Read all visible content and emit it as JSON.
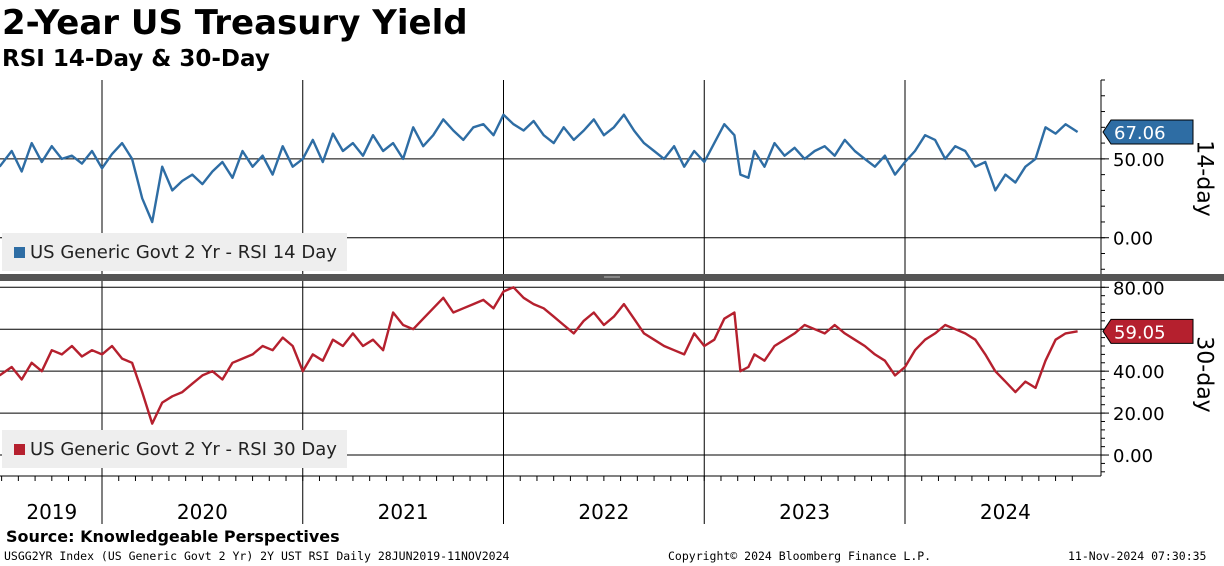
{
  "title": "2-Year US Treasury Yield",
  "subtitle": "RSI 14-Day & 30-Day",
  "source": "Source: Knowledgeable Perspectives",
  "footer": {
    "left": "USGG2YR Index (US Generic Govt 2 Yr) 2Y UST RSI  Daily 28JUN2019-11NOV2024",
    "center": "Copyright© 2024 Bloomberg Finance L.P.",
    "right": "11-Nov-2024 07:30:35"
  },
  "chart_data": [
    {
      "type": "line",
      "panel": "14-day",
      "panel_label": "14-day",
      "legend": "US Generic Govt 2 Yr - RSI 14 Day",
      "color": "#2e6da4",
      "last_value_label": "67.06",
      "yticks": [
        0,
        50
      ],
      "ytick_labels": [
        "0.00",
        "50.00"
      ],
      "ylim": [
        -23,
        100
      ],
      "x": [
        2019.49,
        2019.55,
        2019.6,
        2019.65,
        2019.7,
        2019.75,
        2019.8,
        2019.85,
        2019.9,
        2019.95,
        2020.0,
        2020.05,
        2020.1,
        2020.15,
        2020.2,
        2020.25,
        2020.3,
        2020.35,
        2020.4,
        2020.45,
        2020.5,
        2020.55,
        2020.6,
        2020.65,
        2020.7,
        2020.75,
        2020.8,
        2020.85,
        2020.9,
        2020.95,
        2021.0,
        2021.05,
        2021.1,
        2021.15,
        2021.2,
        2021.25,
        2021.3,
        2021.35,
        2021.4,
        2021.45,
        2021.5,
        2021.55,
        2021.6,
        2021.65,
        2021.7,
        2021.75,
        2021.8,
        2021.85,
        2021.9,
        2021.95,
        2022.0,
        2022.05,
        2022.1,
        2022.15,
        2022.2,
        2022.25,
        2022.3,
        2022.35,
        2022.4,
        2022.45,
        2022.5,
        2022.55,
        2022.6,
        2022.65,
        2022.7,
        2022.75,
        2022.8,
        2022.85,
        2022.9,
        2022.95,
        2023.0,
        2023.05,
        2023.1,
        2023.15,
        2023.18,
        2023.22,
        2023.25,
        2023.3,
        2023.35,
        2023.4,
        2023.45,
        2023.5,
        2023.55,
        2023.6,
        2023.65,
        2023.7,
        2023.75,
        2023.8,
        2023.85,
        2023.9,
        2023.95,
        2024.0,
        2024.05,
        2024.1,
        2024.15,
        2024.2,
        2024.25,
        2024.3,
        2024.35,
        2024.4,
        2024.45,
        2024.5,
        2024.55,
        2024.6,
        2024.65,
        2024.7,
        2024.75,
        2024.8,
        2024.86
      ],
      "values": [
        45,
        55,
        42,
        60,
        48,
        58,
        50,
        52,
        47,
        55,
        44,
        53,
        60,
        50,
        25,
        10,
        45,
        30,
        36,
        40,
        34,
        42,
        48,
        38,
        55,
        45,
        52,
        40,
        58,
        45,
        50,
        62,
        48,
        66,
        55,
        60,
        52,
        65,
        55,
        60,
        50,
        70,
        58,
        65,
        75,
        68,
        62,
        70,
        72,
        65,
        78,
        72,
        68,
        74,
        65,
        60,
        70,
        62,
        68,
        75,
        65,
        70,
        78,
        68,
        60,
        55,
        50,
        58,
        45,
        55,
        48,
        60,
        72,
        65,
        40,
        38,
        55,
        45,
        60,
        52,
        57,
        50,
        55,
        58,
        52,
        62,
        55,
        50,
        45,
        52,
        40,
        48,
        55,
        65,
        62,
        50,
        58,
        55,
        45,
        48,
        30,
        40,
        35,
        45,
        50,
        70,
        66,
        72,
        67
      ]
    },
    {
      "type": "line",
      "panel": "30-day",
      "panel_label": "30-day",
      "legend": "US Generic Govt 2 Yr - RSI 30 Day",
      "color": "#b5202e",
      "last_value_label": "59.05",
      "yticks": [
        0,
        20,
        40,
        60,
        80
      ],
      "ytick_labels": [
        "0.00",
        "20.00",
        "40.00",
        "60.00",
        "80.00"
      ],
      "ylim": [
        -10,
        83
      ],
      "x": [
        2019.49,
        2019.55,
        2019.6,
        2019.65,
        2019.7,
        2019.75,
        2019.8,
        2019.85,
        2019.9,
        2019.95,
        2020.0,
        2020.05,
        2020.1,
        2020.15,
        2020.2,
        2020.25,
        2020.3,
        2020.35,
        2020.4,
        2020.45,
        2020.5,
        2020.55,
        2020.6,
        2020.65,
        2020.7,
        2020.75,
        2020.8,
        2020.85,
        2020.9,
        2020.95,
        2021.0,
        2021.05,
        2021.1,
        2021.15,
        2021.2,
        2021.25,
        2021.3,
        2021.35,
        2021.4,
        2021.45,
        2021.5,
        2021.55,
        2021.6,
        2021.65,
        2021.7,
        2021.75,
        2021.8,
        2021.85,
        2021.9,
        2021.95,
        2022.0,
        2022.05,
        2022.1,
        2022.15,
        2022.2,
        2022.25,
        2022.3,
        2022.35,
        2022.4,
        2022.45,
        2022.5,
        2022.55,
        2022.6,
        2022.65,
        2022.7,
        2022.75,
        2022.8,
        2022.85,
        2022.9,
        2022.95,
        2023.0,
        2023.05,
        2023.1,
        2023.15,
        2023.18,
        2023.22,
        2023.25,
        2023.3,
        2023.35,
        2023.4,
        2023.45,
        2023.5,
        2023.55,
        2023.6,
        2023.65,
        2023.7,
        2023.75,
        2023.8,
        2023.85,
        2023.9,
        2023.95,
        2024.0,
        2024.05,
        2024.1,
        2024.15,
        2024.2,
        2024.25,
        2024.3,
        2024.35,
        2024.4,
        2024.45,
        2024.5,
        2024.55,
        2024.6,
        2024.65,
        2024.7,
        2024.75,
        2024.8,
        2024.86
      ],
      "values": [
        38,
        42,
        36,
        44,
        40,
        50,
        48,
        52,
        47,
        50,
        48,
        52,
        46,
        44,
        30,
        15,
        25,
        28,
        30,
        34,
        38,
        40,
        36,
        44,
        46,
        48,
        52,
        50,
        56,
        52,
        40,
        48,
        45,
        55,
        52,
        58,
        52,
        55,
        50,
        68,
        62,
        60,
        65,
        70,
        75,
        68,
        70,
        72,
        74,
        70,
        78,
        80,
        75,
        72,
        70,
        66,
        62,
        58,
        64,
        68,
        62,
        66,
        72,
        65,
        58,
        55,
        52,
        50,
        48,
        58,
        52,
        55,
        65,
        68,
        40,
        42,
        48,
        45,
        52,
        55,
        58,
        62,
        60,
        58,
        62,
        58,
        55,
        52,
        48,
        45,
        38,
        42,
        50,
        55,
        58,
        62,
        60,
        58,
        55,
        48,
        40,
        35,
        30,
        35,
        32,
        45,
        55,
        58,
        59
      ]
    }
  ],
  "x_axis": {
    "labels": [
      "2019",
      "2020",
      "2021",
      "2022",
      "2023",
      "2024"
    ],
    "year_label_centers": [
      2019.75,
      2020.5,
      2021.5,
      2022.5,
      2023.5,
      2024.5
    ],
    "gridline_years": [
      2020,
      2021,
      2022,
      2023,
      2024
    ]
  }
}
